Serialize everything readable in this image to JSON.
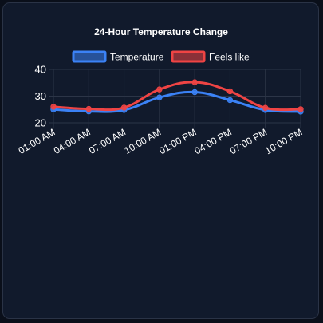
{
  "chart_data": {
    "type": "line",
    "title": "24-Hour Temperature Change",
    "categories": [
      "01:00 AM",
      "04:00 AM",
      "07:00 AM",
      "10:00 AM",
      "01:00 PM",
      "04:00 PM",
      "07:00 PM",
      "10:00 PM"
    ],
    "series": [
      {
        "name": "Temperature",
        "values": [
          25,
          24.3,
          24.8,
          29.5,
          31.5,
          28.5,
          24.8,
          24.2
        ],
        "color": "#3b82f6"
      },
      {
        "name": "Feels like",
        "values": [
          26,
          25.2,
          25.7,
          32.5,
          35.2,
          31.8,
          25.6,
          25.1
        ],
        "color": "#ef4444"
      }
    ],
    "ylim": [
      20,
      40
    ],
    "yticks": [
      20,
      30,
      40
    ],
    "grid": true,
    "legend": "top",
    "background": "#111a2c",
    "grid_color": "#2c3547"
  }
}
